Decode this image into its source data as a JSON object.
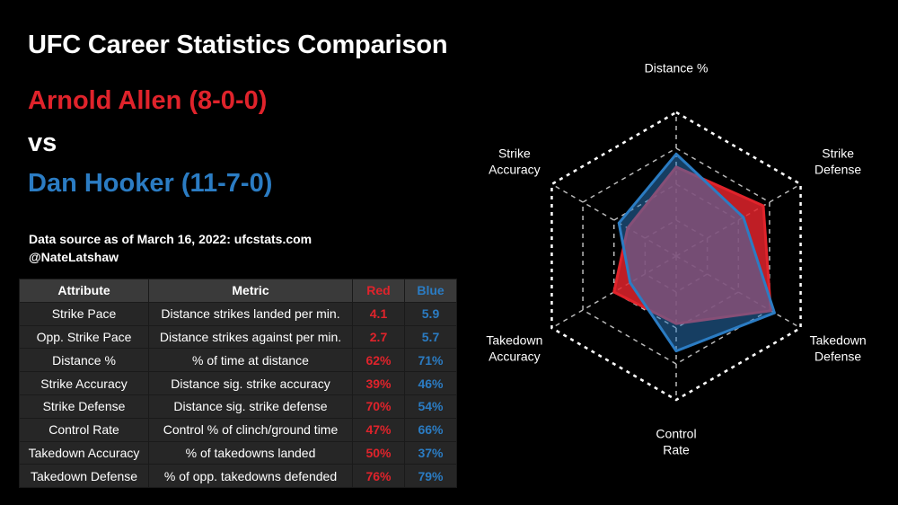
{
  "header": {
    "title": "UFC Career Statistics Comparison",
    "red_fighter": "Arnold Allen (8-0-0)",
    "vs": "vs",
    "blue_fighter": "Dan Hooker (11-7-0)",
    "source": "Data source as of March 16, 2022: ufcstats.com",
    "handle": "@NateLatshaw"
  },
  "table": {
    "headers": [
      "Attribute",
      "Metric",
      "Red",
      "Blue"
    ],
    "rows": [
      {
        "attribute": "Strike Pace",
        "metric": "Distance strikes landed per min.",
        "red": "4.1",
        "blue": "5.9"
      },
      {
        "attribute": "Opp. Strike Pace",
        "metric": "Distance strikes against per min.",
        "red": "2.7",
        "blue": "5.7"
      },
      {
        "attribute": "Distance %",
        "metric": "% of time at distance",
        "red": "62%",
        "blue": "71%"
      },
      {
        "attribute": "Strike Accuracy",
        "metric": "Distance sig. strike accuracy",
        "red": "39%",
        "blue": "46%"
      },
      {
        "attribute": "Strike Defense",
        "metric": "Distance sig. strike defense",
        "red": "70%",
        "blue": "54%"
      },
      {
        "attribute": "Control Rate",
        "metric": "Control % of clinch/ground time",
        "red": "47%",
        "blue": "66%"
      },
      {
        "attribute": "Takedown Accuracy",
        "metric": "% of takedowns landed",
        "red": "50%",
        "blue": "37%"
      },
      {
        "attribute": "Takedown Defense",
        "metric": "% of opp. takedowns defended",
        "red": "76%",
        "blue": "79%"
      }
    ]
  },
  "colors": {
    "red": "#e0232b",
    "blue": "#2b7cc3",
    "overlap": "#6a4a78"
  },
  "chart_data": {
    "type": "radar",
    "axes": [
      {
        "label": [
          "Distance %"
        ]
      },
      {
        "label": [
          "Strike",
          "Defense"
        ]
      },
      {
        "label": [
          "Takedown",
          "Defense"
        ]
      },
      {
        "label": [
          "Control",
          "Rate"
        ]
      },
      {
        "label": [
          "Takedown",
          "Accuracy"
        ]
      },
      {
        "label": [
          "Strike",
          "Accuracy"
        ]
      }
    ],
    "range": [
      0,
      1
    ],
    "rings": 4,
    "grid": true,
    "series": [
      {
        "name": "Red",
        "color": "#e0232b",
        "values": [
          0.62,
          0.7,
          0.76,
          0.47,
          0.5,
          0.39
        ]
      },
      {
        "name": "Blue",
        "color": "#2b7cc3",
        "values": [
          0.71,
          0.54,
          0.79,
          0.66,
          0.37,
          0.46
        ]
      }
    ]
  }
}
